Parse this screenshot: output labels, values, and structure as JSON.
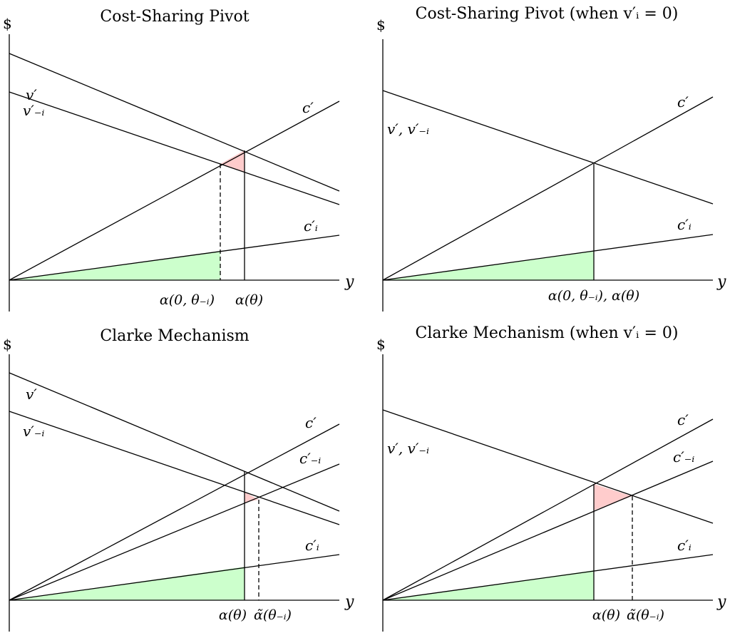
{
  "panels": [
    {
      "id": "cost-sharing-pivot",
      "title": "Cost-Sharing Pivot",
      "y_label": "$",
      "x_label": "y",
      "lines": [
        {
          "name": "v-prime",
          "label": "v′"
        },
        {
          "name": "v-prime-minus-i",
          "label": "v′₋ᵢ"
        },
        {
          "name": "c-prime",
          "label": "c′"
        },
        {
          "name": "c-prime-i",
          "label": "c′ᵢ"
        }
      ],
      "ticks": [
        "α(0, θ₋ᵢ)",
        "α(θ)"
      ]
    },
    {
      "id": "cost-sharing-pivot-v0",
      "title": "Cost-Sharing Pivot (when v′ᵢ = 0)",
      "y_label": "$",
      "x_label": "y",
      "lines": [
        {
          "name": "v-prime-and-v-prime-minus-i",
          "label": "v′, v′₋ᵢ"
        },
        {
          "name": "c-prime",
          "label": "c′"
        },
        {
          "name": "c-prime-i",
          "label": "c′ᵢ"
        }
      ],
      "ticks": [
        "α(0, θ₋ᵢ), α(θ)"
      ]
    },
    {
      "id": "clarke-mechanism",
      "title": "Clarke Mechanism",
      "y_label": "$",
      "x_label": "y",
      "lines": [
        {
          "name": "v-prime",
          "label": "v′"
        },
        {
          "name": "v-prime-minus-i",
          "label": "v′₋ᵢ"
        },
        {
          "name": "c-prime",
          "label": "c′"
        },
        {
          "name": "c-prime-minus-i",
          "label": "c′₋ᵢ"
        },
        {
          "name": "c-prime-i",
          "label": "c′ᵢ"
        }
      ],
      "ticks": [
        "α(θ)",
        "α̃(θ₋ᵢ)"
      ]
    },
    {
      "id": "clarke-mechanism-v0",
      "title": "Clarke Mechanism (when v′ᵢ = 0)",
      "y_label": "$",
      "x_label": "y",
      "lines": [
        {
          "name": "v-prime-and-v-prime-minus-i",
          "label": "v′, v′₋ᵢ"
        },
        {
          "name": "c-prime",
          "label": "c′"
        },
        {
          "name": "c-prime-minus-i",
          "label": "c′₋ᵢ"
        },
        {
          "name": "c-prime-i",
          "label": "c′ᵢ"
        }
      ],
      "ticks": [
        "α(θ)",
        "α̃(θ₋ᵢ)"
      ]
    }
  ],
  "colors": {
    "line": "#000000",
    "green_fill": "#ccffcc",
    "red_fill": "#ffcccc"
  }
}
